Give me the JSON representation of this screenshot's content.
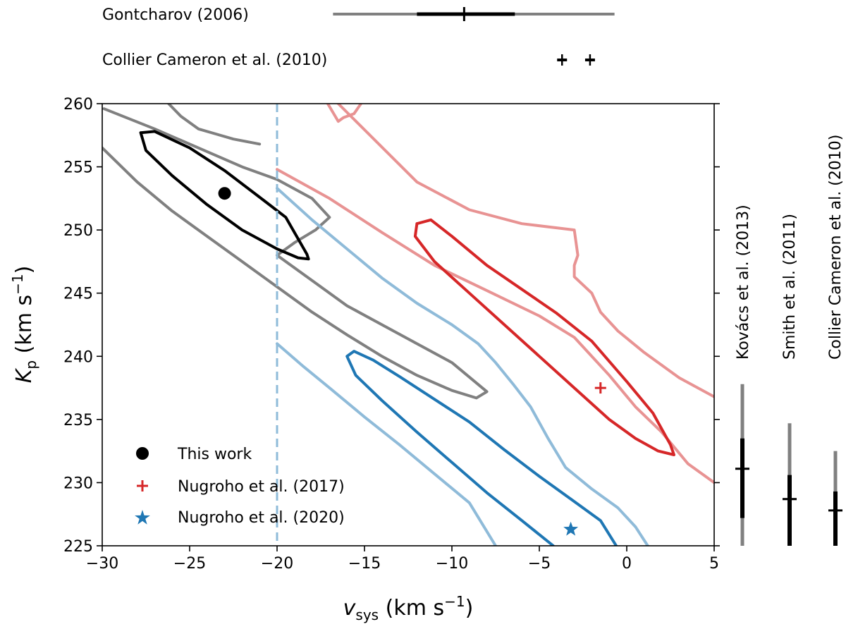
{
  "chart_data": {
    "type": "contour",
    "xlabel": "v_sys (km s^-1)",
    "xlabel_main": "v",
    "xlabel_sub": "sys",
    "xlabel_unit": " (km s",
    "xlabel_exp": "−1",
    "xlabel_close": ")",
    "ylabel_main": "K",
    "ylabel_sub": "p",
    "ylabel_unit": " (km s",
    "ylabel_exp": "−1",
    "ylabel_close": ")",
    "xlim": [
      -30,
      5
    ],
    "ylim": [
      225,
      260
    ],
    "xticks": [
      -30,
      -25,
      -20,
      -15,
      -10,
      -5,
      0,
      5
    ],
    "xtick_labels": [
      "−30",
      "−25",
      "−20",
      "−15",
      "−10",
      "−5",
      "0",
      "5"
    ],
    "yticks": [
      225,
      230,
      235,
      240,
      245,
      250,
      255,
      260
    ],
    "ytick_labels": [
      "225",
      "230",
      "235",
      "240",
      "245",
      "250",
      "255",
      "260"
    ],
    "vline_x": -20,
    "colors": {
      "black": "#000000",
      "gray": "#808080",
      "red": "#d62728",
      "red_light": "#e89393",
      "blue": "#1f77b4",
      "blue_light": "#8fbbd9"
    },
    "contours": [
      {
        "name": "this-work-outer",
        "color": "gray",
        "points": [
          [
            -29.9,
            259.6
          ],
          [
            -27,
            258
          ],
          [
            -24,
            256.2
          ],
          [
            -22,
            255
          ],
          [
            -20,
            254
          ],
          [
            -18,
            252.5
          ],
          [
            -17,
            251
          ],
          [
            -17.8,
            250
          ],
          [
            -19,
            249
          ],
          [
            -20,
            248
          ],
          [
            -19,
            247
          ],
          [
            -18,
            246
          ],
          [
            -16,
            244
          ],
          [
            -14,
            242.5
          ],
          [
            -12,
            241
          ],
          [
            -10,
            239.5
          ],
          [
            -8,
            237.2
          ],
          [
            -8.6,
            236.7
          ],
          [
            -10,
            237.3
          ],
          [
            -12,
            238.5
          ],
          [
            -14,
            240
          ],
          [
            -16,
            241.7
          ],
          [
            -18,
            243.5
          ],
          [
            -20,
            245.5
          ],
          [
            -22,
            247.5
          ],
          [
            -24,
            249.5
          ],
          [
            -26,
            251.5
          ],
          [
            -28,
            253.8
          ],
          [
            -30,
            256.5
          ]
        ]
      },
      {
        "name": "this-work-upper-gray",
        "color": "gray",
        "points": [
          [
            -26.2,
            260
          ],
          [
            -25.5,
            259
          ],
          [
            -24.5,
            258
          ],
          [
            -23.5,
            257.6
          ],
          [
            -22.5,
            257.2
          ],
          [
            -21,
            256.8
          ]
        ]
      },
      {
        "name": "this-work-inner",
        "color": "black",
        "points": [
          [
            -27.8,
            257.7
          ],
          [
            -27,
            257.8
          ],
          [
            -25,
            256.5
          ],
          [
            -23,
            254.7
          ],
          [
            -21,
            252.6
          ],
          [
            -19.5,
            251
          ],
          [
            -18.3,
            248.1
          ],
          [
            -18.2,
            247.7
          ],
          [
            -18.8,
            247.8
          ],
          [
            -20,
            248.5
          ],
          [
            -22,
            250
          ],
          [
            -24,
            252
          ],
          [
            -26,
            254.3
          ],
          [
            -27.5,
            256.3
          ],
          [
            -27.8,
            257.7
          ]
        ]
      },
      {
        "name": "n2017-outer-a",
        "color": "red_light",
        "points": [
          [
            -20,
            254.8
          ],
          [
            -17,
            252.5
          ],
          [
            -14,
            249.8
          ],
          [
            -11,
            247.2
          ],
          [
            -8,
            245.2
          ],
          [
            -5,
            243.2
          ],
          [
            -3,
            241.5
          ],
          [
            -1,
            238.5
          ],
          [
            0.5,
            236
          ],
          [
            2,
            234
          ],
          [
            3.5,
            231.5
          ],
          [
            5,
            230
          ]
        ]
      },
      {
        "name": "n2017-outer-b",
        "color": "red_light",
        "points": [
          [
            -16.5,
            260
          ],
          [
            -12,
            253.8
          ],
          [
            -9,
            251.6
          ],
          [
            -6,
            250.5
          ],
          [
            -3,
            250
          ],
          [
            -2.8,
            248
          ],
          [
            -3,
            247.2
          ],
          [
            -3,
            246.3
          ],
          [
            -2,
            245
          ],
          [
            -1.5,
            243.5
          ],
          [
            -0.5,
            242
          ],
          [
            1,
            240.3
          ],
          [
            3,
            238.3
          ],
          [
            5,
            236.8
          ]
        ]
      },
      {
        "name": "n2017-top-blob",
        "color": "red_light",
        "points": [
          [
            -17.1,
            260
          ],
          [
            -16.5,
            258.6
          ],
          [
            -16.2,
            258.9
          ],
          [
            -15.6,
            259.2
          ],
          [
            -15.2,
            260
          ]
        ]
      },
      {
        "name": "n2017-inner",
        "color": "red",
        "points": [
          [
            -12,
            250.5
          ],
          [
            -11.2,
            250.8
          ],
          [
            -10,
            249.5
          ],
          [
            -8,
            247.2
          ],
          [
            -6,
            245.3
          ],
          [
            -4,
            243.4
          ],
          [
            -2,
            241.2
          ],
          [
            0,
            238
          ],
          [
            1.5,
            235.5
          ],
          [
            2.5,
            233
          ],
          [
            2.7,
            232.2
          ],
          [
            1.8,
            232.5
          ],
          [
            0.5,
            233.5
          ],
          [
            -1,
            235
          ],
          [
            -3,
            237.5
          ],
          [
            -5,
            240
          ],
          [
            -7,
            242.5
          ],
          [
            -9,
            245
          ],
          [
            -11,
            247.5
          ],
          [
            -12.1,
            249.5
          ],
          [
            -12,
            250.5
          ]
        ]
      },
      {
        "name": "n2020-outer-a",
        "color": "blue_light",
        "points": [
          [
            -20,
            253.3
          ],
          [
            -18,
            250.8
          ],
          [
            -16,
            248.5
          ],
          [
            -14,
            246.2
          ],
          [
            -12,
            244.2
          ],
          [
            -10,
            242.5
          ],
          [
            -8.5,
            241
          ],
          [
            -7.5,
            239.5
          ],
          [
            -6.5,
            237.8
          ],
          [
            -5.5,
            236
          ],
          [
            -4.5,
            233.5
          ],
          [
            -3.5,
            231.2
          ],
          [
            -2,
            229.5
          ],
          [
            -0.5,
            228
          ],
          [
            0.5,
            226.5
          ],
          [
            1.2,
            225
          ]
        ]
      },
      {
        "name": "n2020-outer-b",
        "color": "blue_light",
        "points": [
          [
            -20,
            241
          ],
          [
            -18.5,
            239.2
          ],
          [
            -17,
            237.5
          ],
          [
            -15,
            235.2
          ],
          [
            -13,
            233
          ],
          [
            -11,
            230.7
          ],
          [
            -9,
            228.4
          ],
          [
            -7.5,
            225
          ]
        ]
      },
      {
        "name": "n2020-inner",
        "color": "blue",
        "points": [
          [
            -4.2,
            225
          ],
          [
            -6,
            227
          ],
          [
            -8,
            229.2
          ],
          [
            -10,
            231.6
          ],
          [
            -12,
            234
          ],
          [
            -14,
            236.5
          ],
          [
            -15.5,
            238.5
          ],
          [
            -16,
            240
          ],
          [
            -15.6,
            240.4
          ],
          [
            -14.5,
            239.7
          ],
          [
            -13,
            238.4
          ],
          [
            -11,
            236.6
          ],
          [
            -9,
            234.8
          ],
          [
            -7,
            232.6
          ],
          [
            -5,
            230.5
          ],
          [
            -3,
            228.5
          ],
          [
            -1.5,
            227
          ],
          [
            -0.6,
            225
          ]
        ]
      }
    ],
    "vertical_refs": [
      {
        "name": "Gontcharov (2006)",
        "label": "Gontcharov (2006)",
        "center": -9.3,
        "inner": [
          -12,
          -6.4
        ],
        "outer": [
          -16.8,
          -0.7
        ]
      },
      {
        "name": "Collier Cameron et al. (2010)",
        "label": "Collier Cameron et al.  (2010)",
        "points": [
          -3.7,
          -2.1
        ]
      }
    ],
    "horizontal_refs": [
      {
        "name": "Kovács et al. (2013)",
        "label": "Kovács et al.  (2013)",
        "center": 231.1,
        "inner": [
          227.2,
          233.5
        ],
        "outer": [
          225,
          237.8
        ]
      },
      {
        "name": "Smith et al. (2011)",
        "label": "Smith et al.  (2011)",
        "center": 228.7,
        "inner": [
          225,
          230.6
        ],
        "outer": [
          225,
          234.7
        ]
      },
      {
        "name": "Collier Cameron et al. (2010)",
        "label": "Collier Cameron et al.  (2010)",
        "center": 227.8,
        "inner": [
          225,
          229.3
        ],
        "outer": [
          225,
          232.5
        ]
      }
    ],
    "legend": [
      {
        "label": "This work",
        "marker": "circle",
        "color": "#000000"
      },
      {
        "label": "Nugroho et al.  (2017)",
        "marker": "plus",
        "color": "#d62728"
      },
      {
        "label": "Nugroho et al.  (2020)",
        "marker": "star",
        "color": "#1f77b4"
      }
    ],
    "markers": [
      {
        "name": "this-work",
        "marker": "circle",
        "color": "#000000",
        "x": -23,
        "y": 252.9
      },
      {
        "name": "nugroho-2017",
        "marker": "plus",
        "color": "#d62728",
        "x": -1.5,
        "y": 237.5
      },
      {
        "name": "nugroho-2020",
        "marker": "star",
        "color": "#1f77b4",
        "x": -3.2,
        "y": 226.3
      }
    ]
  }
}
